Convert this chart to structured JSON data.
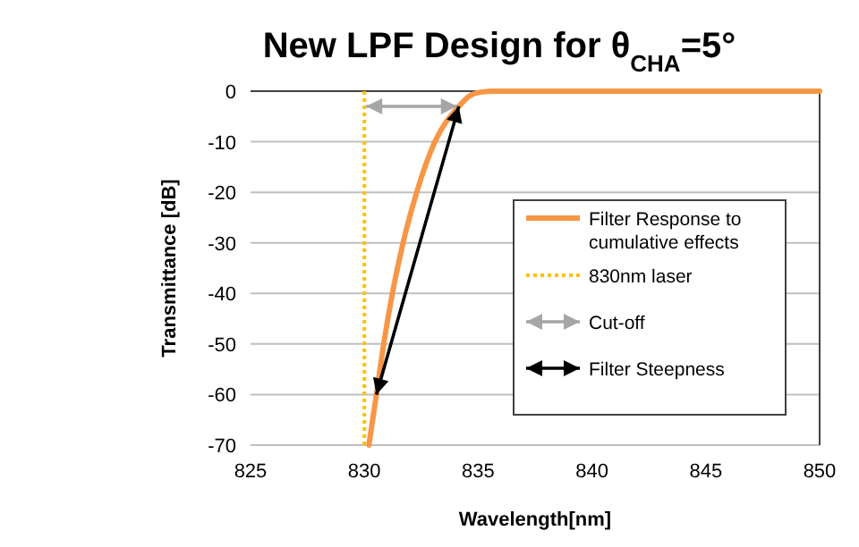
{
  "chart_data": {
    "type": "line",
    "title": "New LPF Design for θ$_{CHA}$=5°",
    "xlabel": "Wavelength[nm]",
    "ylabel": "Transmittance [dB]",
    "xlim": [
      825,
      850
    ],
    "xticks": [
      825,
      830,
      835,
      840,
      845,
      850
    ],
    "ylim": [
      -70,
      0
    ],
    "yticks": [
      -70,
      -60,
      -50,
      -40,
      -30,
      -20,
      -10,
      0
    ],
    "grid": "y",
    "legend": "right",
    "annotations": [
      "Cut-off",
      "Filter Steepness"
    ],
    "series": [
      {
        "name": "Filter Response to cumulative effects",
        "color": "#f79646",
        "line_style": "solid",
        "x": [
          830.2,
          830.53,
          830.85,
          831.23,
          831.7,
          832.3,
          833.1,
          834.15,
          834.6,
          835.1,
          835.7,
          850
        ],
        "values": [
          -70,
          -60,
          -50,
          -40,
          -30,
          -20,
          -10,
          -3,
          -1,
          -0.2,
          0,
          0
        ]
      },
      {
        "name": "830nm laser",
        "color": "#ffc000",
        "line_style": "dotted",
        "x": [
          830,
          830
        ],
        "values": [
          0,
          -70
        ]
      }
    ]
  }
}
